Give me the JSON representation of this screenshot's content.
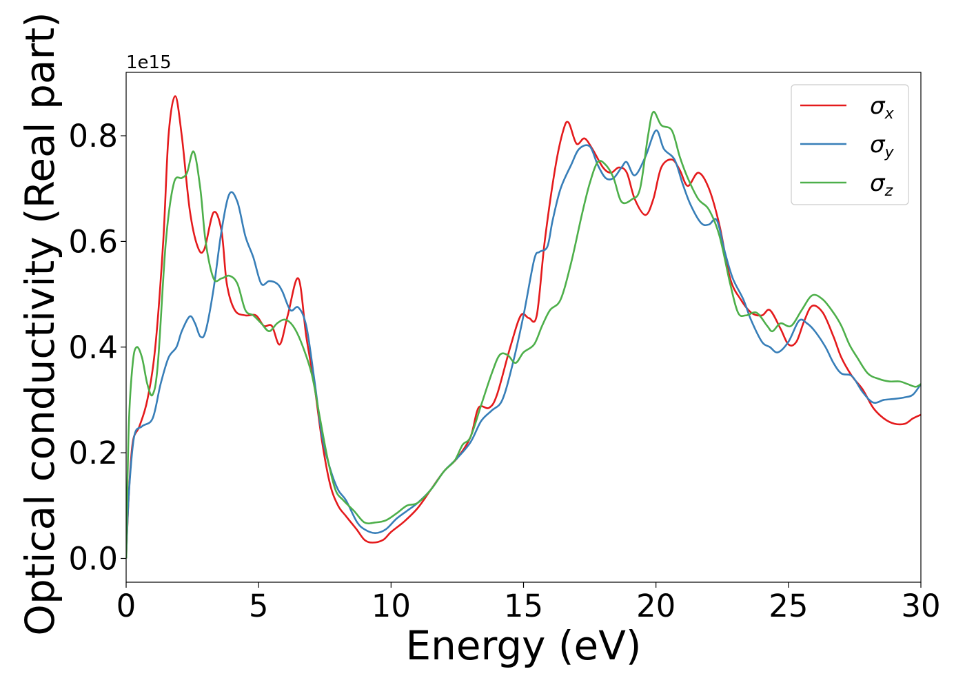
{
  "chart_data": {
    "type": "line",
    "xlabel": "Energy (eV)",
    "ylabel": "Optical conductivity (Real part)",
    "y_offset_text": "1e15",
    "xlim": [
      0,
      30
    ],
    "ylim": [
      -0.045,
      0.92
    ],
    "x_ticks": [
      0,
      5,
      10,
      15,
      20,
      25,
      30
    ],
    "x_tick_labels": [
      "0",
      "5",
      "10",
      "15",
      "20",
      "25",
      "30"
    ],
    "y_ticks": [
      0.0,
      0.2,
      0.4,
      0.6,
      0.8
    ],
    "y_tick_labels": [
      "0.0",
      "0.2",
      "0.4",
      "0.6",
      "0.8"
    ],
    "grid": false,
    "legend_position": "top-right",
    "series": [
      {
        "name": "σx",
        "symbol": "σ",
        "subscript": "x",
        "color": "#e41a1c",
        "points": [
          [
            0,
            0.0
          ],
          [
            0.1,
            0.12
          ],
          [
            0.25,
            0.22
          ],
          [
            0.5,
            0.25
          ],
          [
            0.8,
            0.3
          ],
          [
            1.1,
            0.4
          ],
          [
            1.4,
            0.6
          ],
          [
            1.6,
            0.8
          ],
          [
            1.85,
            0.875
          ],
          [
            2.1,
            0.8
          ],
          [
            2.4,
            0.66
          ],
          [
            2.7,
            0.59
          ],
          [
            2.95,
            0.585
          ],
          [
            3.3,
            0.655
          ],
          [
            3.6,
            0.62
          ],
          [
            3.8,
            0.52
          ],
          [
            4.1,
            0.47
          ],
          [
            4.5,
            0.46
          ],
          [
            4.9,
            0.46
          ],
          [
            5.2,
            0.44
          ],
          [
            5.5,
            0.44
          ],
          [
            5.8,
            0.405
          ],
          [
            6.1,
            0.46
          ],
          [
            6.5,
            0.53
          ],
          [
            6.8,
            0.42
          ],
          [
            7.1,
            0.33
          ],
          [
            7.4,
            0.22
          ],
          [
            7.7,
            0.14
          ],
          [
            8.0,
            0.1
          ],
          [
            8.3,
            0.08
          ],
          [
            8.7,
            0.055
          ],
          [
            9.0,
            0.035
          ],
          [
            9.3,
            0.03
          ],
          [
            9.7,
            0.035
          ],
          [
            10.0,
            0.05
          ],
          [
            10.5,
            0.07
          ],
          [
            11.0,
            0.095
          ],
          [
            11.5,
            0.13
          ],
          [
            12.0,
            0.165
          ],
          [
            12.5,
            0.19
          ],
          [
            13.0,
            0.23
          ],
          [
            13.3,
            0.285
          ],
          [
            13.7,
            0.285
          ],
          [
            14.0,
            0.31
          ],
          [
            14.5,
            0.4
          ],
          [
            14.9,
            0.46
          ],
          [
            15.2,
            0.455
          ],
          [
            15.5,
            0.46
          ],
          [
            15.8,
            0.6
          ],
          [
            16.2,
            0.74
          ],
          [
            16.5,
            0.81
          ],
          [
            16.7,
            0.825
          ],
          [
            17.0,
            0.785
          ],
          [
            17.3,
            0.795
          ],
          [
            17.6,
            0.775
          ],
          [
            18.0,
            0.74
          ],
          [
            18.3,
            0.73
          ],
          [
            18.6,
            0.74
          ],
          [
            18.9,
            0.73
          ],
          [
            19.2,
            0.68
          ],
          [
            19.6,
            0.65
          ],
          [
            19.9,
            0.68
          ],
          [
            20.2,
            0.74
          ],
          [
            20.6,
            0.755
          ],
          [
            20.9,
            0.735
          ],
          [
            21.2,
            0.705
          ],
          [
            21.6,
            0.73
          ],
          [
            22.0,
            0.7
          ],
          [
            22.4,
            0.63
          ],
          [
            22.8,
            0.53
          ],
          [
            23.2,
            0.49
          ],
          [
            23.6,
            0.465
          ],
          [
            24.0,
            0.46
          ],
          [
            24.3,
            0.47
          ],
          [
            24.7,
            0.435
          ],
          [
            25.0,
            0.405
          ],
          [
            25.3,
            0.41
          ],
          [
            25.6,
            0.45
          ],
          [
            25.9,
            0.478
          ],
          [
            26.3,
            0.465
          ],
          [
            26.7,
            0.42
          ],
          [
            27.0,
            0.38
          ],
          [
            27.4,
            0.345
          ],
          [
            27.8,
            0.32
          ],
          [
            28.2,
            0.285
          ],
          [
            28.6,
            0.265
          ],
          [
            29.0,
            0.255
          ],
          [
            29.4,
            0.255
          ],
          [
            29.7,
            0.265
          ],
          [
            30.0,
            0.272
          ]
        ]
      },
      {
        "name": "σy",
        "symbol": "σ",
        "subscript": "y",
        "color": "#377eb8",
        "points": [
          [
            0,
            0.0
          ],
          [
            0.1,
            0.12
          ],
          [
            0.3,
            0.23
          ],
          [
            0.6,
            0.25
          ],
          [
            1.0,
            0.265
          ],
          [
            1.3,
            0.33
          ],
          [
            1.6,
            0.38
          ],
          [
            1.9,
            0.4
          ],
          [
            2.1,
            0.43
          ],
          [
            2.4,
            0.458
          ],
          [
            2.6,
            0.445
          ],
          [
            2.8,
            0.42
          ],
          [
            3.0,
            0.43
          ],
          [
            3.3,
            0.51
          ],
          [
            3.6,
            0.62
          ],
          [
            3.9,
            0.69
          ],
          [
            4.2,
            0.675
          ],
          [
            4.5,
            0.61
          ],
          [
            4.8,
            0.57
          ],
          [
            5.1,
            0.52
          ],
          [
            5.4,
            0.525
          ],
          [
            5.7,
            0.52
          ],
          [
            5.9,
            0.505
          ],
          [
            6.2,
            0.47
          ],
          [
            6.5,
            0.475
          ],
          [
            6.8,
            0.44
          ],
          [
            7.1,
            0.34
          ],
          [
            7.4,
            0.23
          ],
          [
            7.7,
            0.17
          ],
          [
            8.0,
            0.13
          ],
          [
            8.3,
            0.11
          ],
          [
            8.7,
            0.07
          ],
          [
            9.0,
            0.055
          ],
          [
            9.4,
            0.048
          ],
          [
            9.8,
            0.055
          ],
          [
            10.2,
            0.075
          ],
          [
            10.6,
            0.09
          ],
          [
            11.0,
            0.105
          ],
          [
            11.5,
            0.13
          ],
          [
            12.0,
            0.165
          ],
          [
            12.5,
            0.19
          ],
          [
            13.0,
            0.22
          ],
          [
            13.4,
            0.26
          ],
          [
            13.8,
            0.28
          ],
          [
            14.2,
            0.3
          ],
          [
            14.6,
            0.37
          ],
          [
            15.0,
            0.46
          ],
          [
            15.4,
            0.565
          ],
          [
            15.6,
            0.58
          ],
          [
            15.9,
            0.59
          ],
          [
            16.1,
            0.64
          ],
          [
            16.4,
            0.7
          ],
          [
            16.8,
            0.745
          ],
          [
            17.1,
            0.775
          ],
          [
            17.5,
            0.78
          ],
          [
            17.8,
            0.745
          ],
          [
            18.1,
            0.72
          ],
          [
            18.4,
            0.72
          ],
          [
            18.7,
            0.74
          ],
          [
            18.9,
            0.75
          ],
          [
            19.2,
            0.725
          ],
          [
            19.6,
            0.76
          ],
          [
            20.0,
            0.81
          ],
          [
            20.3,
            0.775
          ],
          [
            20.7,
            0.755
          ],
          [
            21.0,
            0.71
          ],
          [
            21.3,
            0.67
          ],
          [
            21.7,
            0.635
          ],
          [
            22.0,
            0.632
          ],
          [
            22.3,
            0.64
          ],
          [
            22.6,
            0.58
          ],
          [
            22.9,
            0.53
          ],
          [
            23.3,
            0.49
          ],
          [
            23.6,
            0.45
          ],
          [
            24.0,
            0.41
          ],
          [
            24.3,
            0.4
          ],
          [
            24.6,
            0.39
          ],
          [
            25.0,
            0.41
          ],
          [
            25.4,
            0.45
          ],
          [
            25.7,
            0.445
          ],
          [
            26.0,
            0.43
          ],
          [
            26.4,
            0.4
          ],
          [
            26.7,
            0.37
          ],
          [
            27.0,
            0.35
          ],
          [
            27.4,
            0.345
          ],
          [
            27.8,
            0.315
          ],
          [
            28.2,
            0.295
          ],
          [
            28.6,
            0.3
          ],
          [
            29.0,
            0.302
          ],
          [
            29.4,
            0.305
          ],
          [
            29.7,
            0.31
          ],
          [
            30.0,
            0.33
          ]
        ]
      },
      {
        "name": "σz",
        "symbol": "σ",
        "subscript": "z",
        "color": "#4daf4a",
        "points": [
          [
            0,
            0.0
          ],
          [
            0.1,
            0.25
          ],
          [
            0.25,
            0.37
          ],
          [
            0.4,
            0.4
          ],
          [
            0.6,
            0.38
          ],
          [
            0.8,
            0.33
          ],
          [
            1.0,
            0.31
          ],
          [
            1.2,
            0.37
          ],
          [
            1.5,
            0.6
          ],
          [
            1.8,
            0.71
          ],
          [
            2.1,
            0.72
          ],
          [
            2.3,
            0.73
          ],
          [
            2.55,
            0.77
          ],
          [
            2.8,
            0.7
          ],
          [
            3.0,
            0.6
          ],
          [
            3.3,
            0.53
          ],
          [
            3.6,
            0.53
          ],
          [
            3.9,
            0.535
          ],
          [
            4.2,
            0.52
          ],
          [
            4.5,
            0.47
          ],
          [
            4.8,
            0.46
          ],
          [
            5.1,
            0.445
          ],
          [
            5.4,
            0.43
          ],
          [
            5.7,
            0.445
          ],
          [
            6.0,
            0.452
          ],
          [
            6.3,
            0.44
          ],
          [
            6.6,
            0.41
          ],
          [
            7.0,
            0.35
          ],
          [
            7.3,
            0.27
          ],
          [
            7.6,
            0.19
          ],
          [
            7.9,
            0.13
          ],
          [
            8.2,
            0.11
          ],
          [
            8.6,
            0.09
          ],
          [
            9.0,
            0.068
          ],
          [
            9.4,
            0.068
          ],
          [
            9.8,
            0.072
          ],
          [
            10.2,
            0.085
          ],
          [
            10.6,
            0.1
          ],
          [
            11.0,
            0.105
          ],
          [
            11.5,
            0.13
          ],
          [
            12.0,
            0.165
          ],
          [
            12.4,
            0.185
          ],
          [
            12.7,
            0.215
          ],
          [
            13.0,
            0.23
          ],
          [
            13.4,
            0.29
          ],
          [
            13.8,
            0.35
          ],
          [
            14.1,
            0.385
          ],
          [
            14.4,
            0.385
          ],
          [
            14.7,
            0.37
          ],
          [
            15.0,
            0.39
          ],
          [
            15.4,
            0.405
          ],
          [
            15.7,
            0.44
          ],
          [
            16.0,
            0.47
          ],
          [
            16.4,
            0.49
          ],
          [
            16.8,
            0.56
          ],
          [
            17.2,
            0.65
          ],
          [
            17.5,
            0.71
          ],
          [
            17.8,
            0.75
          ],
          [
            18.1,
            0.745
          ],
          [
            18.4,
            0.72
          ],
          [
            18.7,
            0.675
          ],
          [
            19.1,
            0.68
          ],
          [
            19.4,
            0.7
          ],
          [
            19.7,
            0.8
          ],
          [
            19.9,
            0.845
          ],
          [
            20.2,
            0.82
          ],
          [
            20.6,
            0.81
          ],
          [
            20.9,
            0.76
          ],
          [
            21.2,
            0.72
          ],
          [
            21.6,
            0.68
          ],
          [
            22.0,
            0.66
          ],
          [
            22.4,
            0.61
          ],
          [
            22.8,
            0.52
          ],
          [
            23.1,
            0.465
          ],
          [
            23.4,
            0.46
          ],
          [
            23.8,
            0.465
          ],
          [
            24.2,
            0.44
          ],
          [
            24.4,
            0.43
          ],
          [
            24.7,
            0.445
          ],
          [
            25.1,
            0.44
          ],
          [
            25.5,
            0.47
          ],
          [
            25.9,
            0.498
          ],
          [
            26.3,
            0.49
          ],
          [
            26.7,
            0.465
          ],
          [
            27.0,
            0.44
          ],
          [
            27.3,
            0.405
          ],
          [
            27.6,
            0.38
          ],
          [
            28.0,
            0.35
          ],
          [
            28.4,
            0.34
          ],
          [
            28.8,
            0.335
          ],
          [
            29.2,
            0.335
          ],
          [
            29.5,
            0.33
          ],
          [
            29.8,
            0.325
          ],
          [
            30.0,
            0.33
          ]
        ]
      }
    ]
  }
}
